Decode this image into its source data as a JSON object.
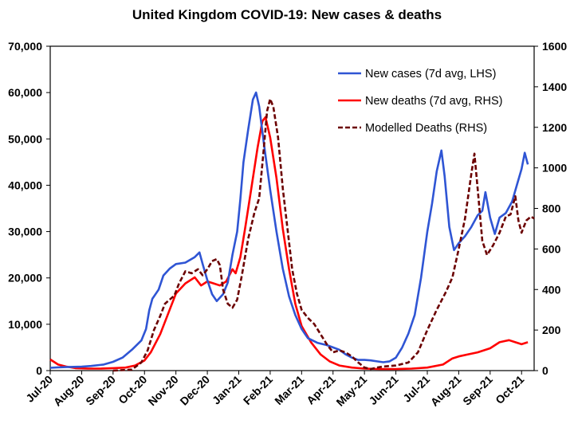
{
  "chart_data": {
    "type": "line",
    "title": "United Kingdom COVID-19: New cases & deaths",
    "x_categories": [
      "Jul-20",
      "Aug-20",
      "Sep-20",
      "Oct-20",
      "Nov-20",
      "Dec-20",
      "Jan-21",
      "Feb-21",
      "Mar-21",
      "Apr-21",
      "May-21",
      "Jun-21",
      "Jul-21",
      "Aug-21",
      "Sep-21",
      "Oct-21"
    ],
    "left_axis": {
      "min": 0,
      "max": 70000,
      "ticks": [
        "0",
        "10,000",
        "20,000",
        "30,000",
        "40,000",
        "50,000",
        "60,000",
        "70,000"
      ]
    },
    "right_axis": {
      "min": 0,
      "max": 1600,
      "ticks": [
        "0",
        "200",
        "400",
        "600",
        "800",
        "1000",
        "1200",
        "1400",
        "1600"
      ]
    },
    "grid": false,
    "legend_position": "top-right",
    "series": [
      {
        "name": "New cases (7d avg, LHS)",
        "axis": "left",
        "color": "#2f55d4",
        "style": "solid",
        "points": [
          [
            0,
            600
          ],
          [
            0.25,
            700
          ],
          [
            0.5,
            750
          ],
          [
            0.75,
            800
          ],
          [
            1,
            850
          ],
          [
            1.3,
            1000
          ],
          [
            1.7,
            1300
          ],
          [
            2,
            1900
          ],
          [
            2.3,
            2800
          ],
          [
            2.6,
            4500
          ],
          [
            2.9,
            6500
          ],
          [
            3.05,
            9000
          ],
          [
            3.15,
            13000
          ],
          [
            3.25,
            15500
          ],
          [
            3.3,
            16000
          ],
          [
            3.45,
            17500
          ],
          [
            3.6,
            20500
          ],
          [
            3.8,
            22000
          ],
          [
            4,
            23000
          ],
          [
            4.3,
            23300
          ],
          [
            4.6,
            24500
          ],
          [
            4.75,
            25500
          ],
          [
            4.85,
            23000
          ],
          [
            5,
            19500
          ],
          [
            5.15,
            16500
          ],
          [
            5.3,
            15000
          ],
          [
            5.5,
            16500
          ],
          [
            5.65,
            19000
          ],
          [
            5.8,
            25000
          ],
          [
            5.95,
            30000
          ],
          [
            6.05,
            37000
          ],
          [
            6.15,
            45000
          ],
          [
            6.3,
            52000
          ],
          [
            6.45,
            58500
          ],
          [
            6.55,
            60000
          ],
          [
            6.65,
            57000
          ],
          [
            6.8,
            49000
          ],
          [
            7,
            39000
          ],
          [
            7.2,
            30000
          ],
          [
            7.4,
            22000
          ],
          [
            7.6,
            16000
          ],
          [
            7.8,
            12000
          ],
          [
            8,
            9000
          ],
          [
            8.2,
            7000
          ],
          [
            8.5,
            6000
          ],
          [
            8.8,
            5500
          ],
          [
            9,
            5000
          ],
          [
            9.2,
            4500
          ],
          [
            9.4,
            3500
          ],
          [
            9.6,
            2800
          ],
          [
            9.8,
            2300
          ],
          [
            10,
            2300
          ],
          [
            10.2,
            2200
          ],
          [
            10.4,
            2000
          ],
          [
            10.6,
            1800
          ],
          [
            10.8,
            2000
          ],
          [
            11,
            2800
          ],
          [
            11.2,
            5000
          ],
          [
            11.4,
            8000
          ],
          [
            11.6,
            12000
          ],
          [
            11.8,
            20000
          ],
          [
            12,
            30000
          ],
          [
            12.15,
            36000
          ],
          [
            12.3,
            43000
          ],
          [
            12.45,
            47500
          ],
          [
            12.55,
            42000
          ],
          [
            12.7,
            31000
          ],
          [
            12.85,
            26000
          ],
          [
            13,
            27500
          ],
          [
            13.2,
            29000
          ],
          [
            13.4,
            31000
          ],
          [
            13.6,
            33500
          ],
          [
            13.75,
            34500
          ],
          [
            13.85,
            38500
          ],
          [
            14,
            33000
          ],
          [
            14.15,
            29500
          ],
          [
            14.3,
            33000
          ],
          [
            14.5,
            34000
          ],
          [
            14.7,
            36500
          ],
          [
            14.85,
            40000
          ],
          [
            15,
            43500
          ],
          [
            15.1,
            47000
          ],
          [
            15.2,
            44500
          ]
        ]
      },
      {
        "name": "New deaths (7d avg, RHS)",
        "axis": "right",
        "color": "#ff0000",
        "style": "solid",
        "points": [
          [
            0,
            55
          ],
          [
            0.25,
            30
          ],
          [
            0.5,
            20
          ],
          [
            0.8,
            12
          ],
          [
            1.2,
            10
          ],
          [
            1.6,
            10
          ],
          [
            2,
            12
          ],
          [
            2.4,
            15
          ],
          [
            2.7,
            25
          ],
          [
            3,
            50
          ],
          [
            3.2,
            90
          ],
          [
            3.5,
            180
          ],
          [
            3.8,
            300
          ],
          [
            4,
            380
          ],
          [
            4.3,
            430
          ],
          [
            4.6,
            460
          ],
          [
            4.8,
            420
          ],
          [
            5,
            440
          ],
          [
            5.2,
            430
          ],
          [
            5.4,
            420
          ],
          [
            5.6,
            440
          ],
          [
            5.8,
            500
          ],
          [
            5.9,
            480
          ],
          [
            6.05,
            560
          ],
          [
            6.2,
            700
          ],
          [
            6.4,
            900
          ],
          [
            6.6,
            1100
          ],
          [
            6.75,
            1230
          ],
          [
            6.85,
            1250
          ],
          [
            7,
            1150
          ],
          [
            7.2,
            950
          ],
          [
            7.4,
            700
          ],
          [
            7.6,
            500
          ],
          [
            7.8,
            330
          ],
          [
            8,
            220
          ],
          [
            8.3,
            140
          ],
          [
            8.6,
            80
          ],
          [
            8.9,
            45
          ],
          [
            9.2,
            25
          ],
          [
            9.6,
            15
          ],
          [
            10,
            10
          ],
          [
            10.5,
            8
          ],
          [
            11,
            8
          ],
          [
            11.5,
            10
          ],
          [
            12,
            15
          ],
          [
            12.5,
            30
          ],
          [
            12.8,
            60
          ],
          [
            13,
            70
          ],
          [
            13.3,
            80
          ],
          [
            13.6,
            90
          ],
          [
            14,
            110
          ],
          [
            14.3,
            140
          ],
          [
            14.6,
            150
          ],
          [
            14.8,
            140
          ],
          [
            15,
            130
          ],
          [
            15.2,
            140
          ]
        ]
      },
      {
        "name": "Modelled Deaths (RHS)",
        "axis": "right",
        "color": "#6b0000",
        "style": "dashed",
        "points": [
          [
            2,
            0
          ],
          [
            2.6,
            5
          ],
          [
            2.9,
            40
          ],
          [
            3.1,
            100
          ],
          [
            3.3,
            200
          ],
          [
            3.5,
            270
          ],
          [
            3.65,
            330
          ],
          [
            3.8,
            350
          ],
          [
            3.95,
            370
          ],
          [
            4.1,
            430
          ],
          [
            4.3,
            490
          ],
          [
            4.5,
            480
          ],
          [
            4.7,
            500
          ],
          [
            4.85,
            470
          ],
          [
            5,
            500
          ],
          [
            5.15,
            540
          ],
          [
            5.3,
            550
          ],
          [
            5.4,
            520
          ],
          [
            5.5,
            400
          ],
          [
            5.65,
            330
          ],
          [
            5.8,
            310
          ],
          [
            5.95,
            350
          ],
          [
            6.1,
            470
          ],
          [
            6.3,
            650
          ],
          [
            6.5,
            780
          ],
          [
            6.65,
            850
          ],
          [
            6.8,
            1100
          ],
          [
            6.9,
            1280
          ],
          [
            7,
            1340
          ],
          [
            7.1,
            1300
          ],
          [
            7.25,
            1150
          ],
          [
            7.4,
            900
          ],
          [
            7.55,
            700
          ],
          [
            7.7,
            500
          ],
          [
            7.85,
            380
          ],
          [
            8,
            300
          ],
          [
            8.2,
            260
          ],
          [
            8.4,
            230
          ],
          [
            8.6,
            180
          ],
          [
            8.8,
            130
          ],
          [
            9,
            90
          ],
          [
            9.2,
            100
          ],
          [
            9.4,
            90
          ],
          [
            9.6,
            70
          ],
          [
            9.8,
            40
          ],
          [
            10,
            15
          ],
          [
            10.2,
            8
          ],
          [
            10.4,
            15
          ],
          [
            10.6,
            20
          ],
          [
            11,
            25
          ],
          [
            11.4,
            40
          ],
          [
            11.7,
            90
          ],
          [
            12,
            200
          ],
          [
            12.3,
            300
          ],
          [
            12.6,
            390
          ],
          [
            12.8,
            460
          ],
          [
            13,
            600
          ],
          [
            13.2,
            750
          ],
          [
            13.4,
            970
          ],
          [
            13.5,
            1070
          ],
          [
            13.6,
            900
          ],
          [
            13.75,
            640
          ],
          [
            13.9,
            570
          ],
          [
            14.1,
            620
          ],
          [
            14.3,
            680
          ],
          [
            14.5,
            760
          ],
          [
            14.65,
            770
          ],
          [
            14.8,
            860
          ],
          [
            14.9,
            740
          ],
          [
            15,
            680
          ],
          [
            15.15,
            740
          ],
          [
            15.3,
            760
          ],
          [
            15.4,
            750
          ]
        ]
      }
    ]
  }
}
